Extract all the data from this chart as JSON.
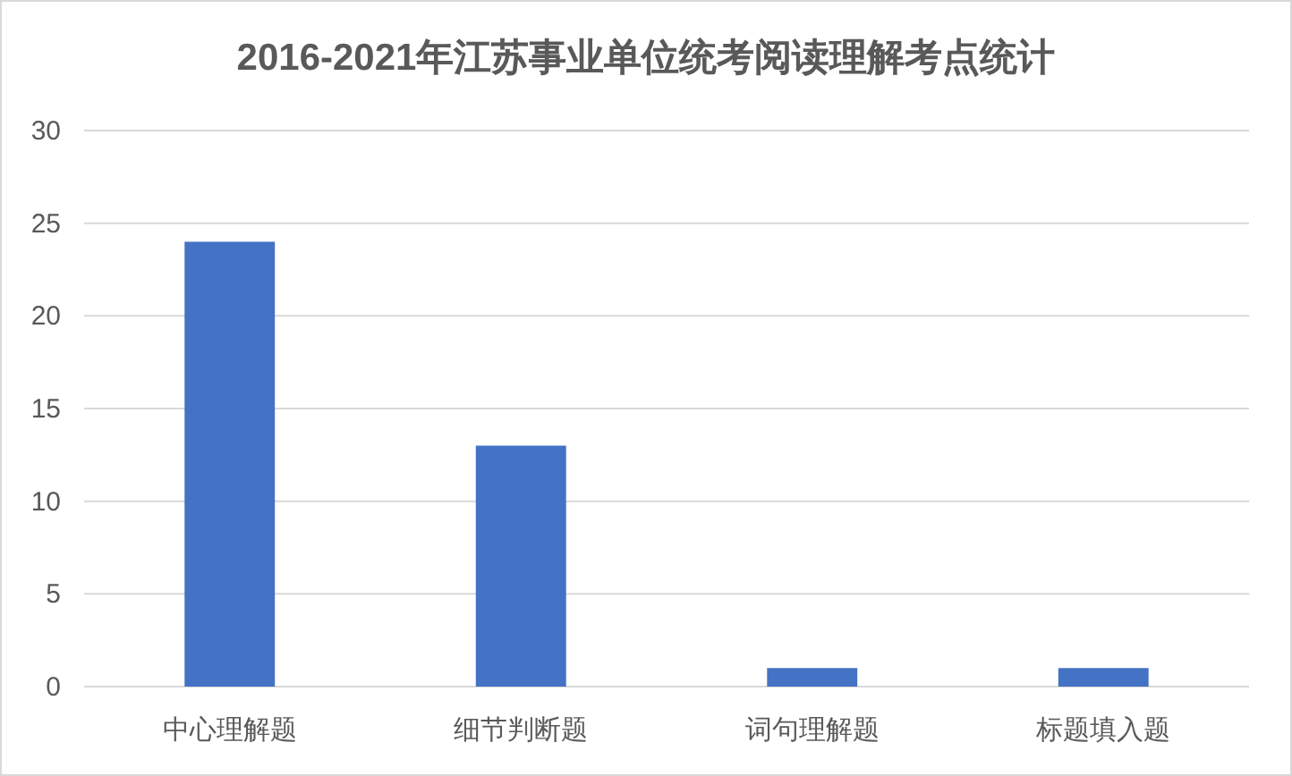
{
  "chart_data": {
    "type": "bar",
    "title": "2016-2021年江苏事业单位统考阅读理解考点统计",
    "categories": [
      "中心理解题",
      "细节判断题",
      "词句理解题",
      "标题填入题"
    ],
    "values": [
      24,
      13,
      1,
      1
    ],
    "color": "#4472c4",
    "ylim": [
      0,
      30
    ],
    "yticks": [
      0,
      5,
      10,
      15,
      20,
      25,
      30
    ],
    "grid": "y"
  }
}
